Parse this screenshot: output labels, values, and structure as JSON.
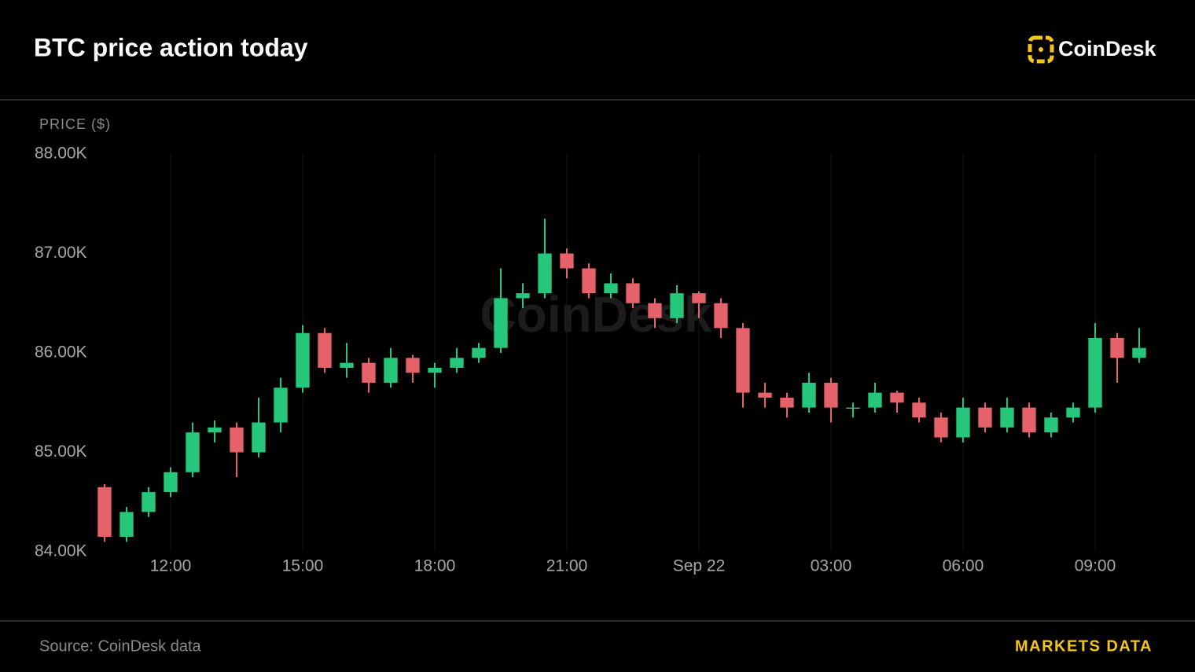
{
  "chart_data": {
    "type": "candlestick",
    "title": "BTC price action today",
    "brand": "CoinDesk",
    "watermark": "CoinDesk",
    "y_label": "PRICE ($)",
    "source": "Source: CoinDesk data",
    "footer_link": "MARKETS DATA",
    "up_color": "#26c77a",
    "down_color": "#e5626b",
    "grid": true,
    "xlim": [
      10.25,
      34.5
    ],
    "xticks": [
      {
        "value": 12,
        "label": "12:00"
      },
      {
        "value": 15,
        "label": "15:00"
      },
      {
        "value": 18,
        "label": "18:00"
      },
      {
        "value": 21,
        "label": "21:00"
      },
      {
        "value": 24,
        "label": "Sep 22"
      },
      {
        "value": 27,
        "label": "03:00"
      },
      {
        "value": 30,
        "label": "06:00"
      },
      {
        "value": 33,
        "label": "09:00"
      }
    ],
    "ylim": [
      84,
      88
    ],
    "yticks": [
      {
        "value": 84,
        "label": "84.00K"
      },
      {
        "value": 85,
        "label": "85.00K"
      },
      {
        "value": 86,
        "label": "86.00K"
      },
      {
        "value": 87,
        "label": "87.00K"
      },
      {
        "value": 88,
        "label": "88.00K"
      }
    ],
    "x": [
      10.5,
      11,
      11.5,
      12,
      12.5,
      13,
      13.5,
      14,
      14.5,
      15,
      15.5,
      16,
      16.5,
      17,
      17.5,
      18,
      18.5,
      19,
      19.5,
      20,
      20.5,
      21,
      21.5,
      22,
      22.5,
      23,
      23.5,
      24,
      24.5,
      25,
      25.5,
      26,
      26.5,
      27,
      27.5,
      28,
      28.5,
      29,
      29.5,
      30,
      30.5,
      31,
      31.5,
      32,
      32.5,
      33,
      33.5,
      34
    ],
    "open": [
      84.65,
      84.15,
      84.4,
      84.6,
      84.8,
      85.2,
      85.25,
      85.0,
      85.3,
      85.65,
      86.2,
      85.85,
      85.9,
      85.7,
      85.95,
      85.8,
      85.85,
      85.95,
      86.05,
      86.55,
      86.6,
      87.0,
      86.85,
      86.6,
      86.7,
      86.5,
      86.35,
      86.6,
      86.5,
      86.25,
      85.6,
      85.55,
      85.45,
      85.7,
      85.45,
      85.45,
      85.6,
      85.5,
      85.35,
      85.15,
      85.45,
      85.25,
      85.45,
      85.2,
      85.35,
      85.45,
      86.15,
      85.95
    ],
    "high": [
      84.68,
      84.45,
      84.65,
      84.85,
      85.3,
      85.32,
      85.3,
      85.55,
      85.75,
      86.28,
      86.25,
      86.1,
      85.95,
      86.05,
      85.98,
      85.9,
      86.05,
      86.1,
      86.85,
      86.7,
      87.35,
      87.05,
      86.9,
      86.8,
      86.75,
      86.55,
      86.68,
      86.62,
      86.55,
      86.3,
      85.7,
      85.6,
      85.8,
      85.75,
      85.5,
      85.7,
      85.62,
      85.55,
      85.4,
      85.55,
      85.5,
      85.55,
      85.5,
      85.4,
      85.5,
      86.3,
      86.2,
      86.25
    ],
    "low": [
      84.1,
      84.1,
      84.35,
      84.55,
      84.75,
      85.1,
      84.75,
      84.95,
      85.2,
      85.6,
      85.8,
      85.75,
      85.6,
      85.65,
      85.7,
      85.65,
      85.8,
      85.9,
      86.0,
      86.45,
      86.55,
      86.75,
      86.55,
      86.55,
      86.45,
      86.25,
      86.3,
      86.35,
      86.15,
      85.45,
      85.45,
      85.35,
      85.4,
      85.3,
      85.35,
      85.4,
      85.4,
      85.3,
      85.1,
      85.1,
      85.2,
      85.2,
      85.15,
      85.15,
      85.3,
      85.4,
      85.7,
      85.9
    ],
    "close": [
      84.15,
      84.4,
      84.6,
      84.8,
      85.2,
      85.25,
      85.0,
      85.3,
      85.65,
      86.2,
      85.85,
      85.9,
      85.7,
      85.95,
      85.8,
      85.85,
      85.95,
      86.05,
      86.55,
      86.6,
      87.0,
      86.85,
      86.6,
      86.7,
      86.5,
      86.35,
      86.6,
      86.5,
      86.25,
      85.6,
      85.55,
      85.45,
      85.7,
      85.45,
      85.45,
      85.6,
      85.5,
      85.35,
      85.15,
      85.45,
      85.25,
      85.45,
      85.2,
      85.35,
      85.45,
      86.15,
      85.95,
      86.05
    ]
  }
}
